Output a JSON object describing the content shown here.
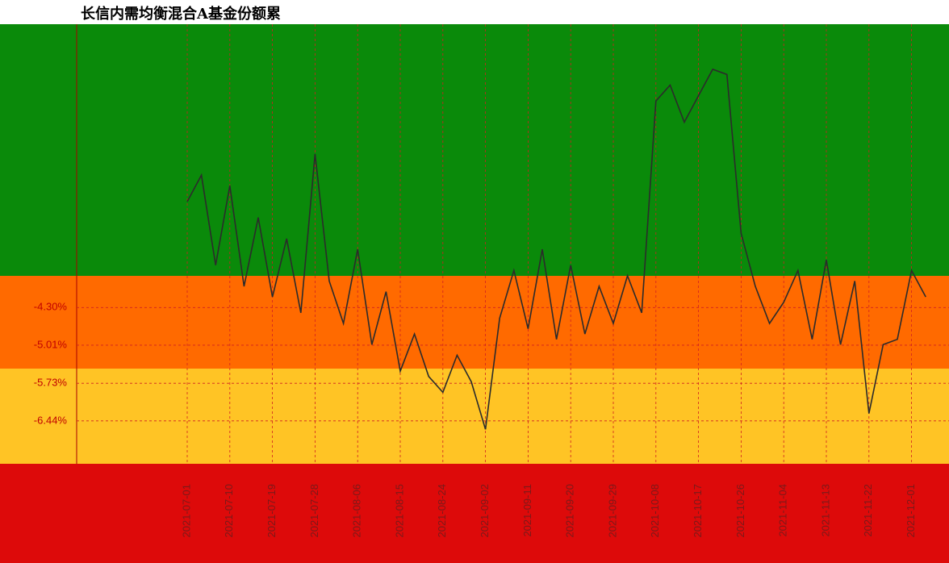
{
  "chart_data": {
    "type": "line",
    "title": "长信内需均衡混合A基金份额累",
    "categories": [
      "2021-07-01",
      null,
      null,
      "2021-07-10",
      null,
      null,
      "2021-07-19",
      null,
      null,
      "2021-07-28",
      null,
      null,
      "2021-08-06",
      null,
      null,
      "2021-08-15",
      null,
      null,
      "2021-08-24",
      null,
      null,
      "2021-09-02",
      null,
      null,
      "2021-09-11",
      null,
      null,
      "2021-09-20",
      null,
      null,
      "2021-09-29",
      null,
      null,
      "2021-10-08",
      null,
      null,
      "2021-10-17",
      null,
      null,
      "2021-10-26",
      null,
      null,
      "2021-11-04",
      null,
      null,
      "2021-11-13",
      null,
      null,
      "2021-11-22",
      null,
      null,
      "2021-12-01",
      null
    ],
    "values": [
      -2.3,
      -1.8,
      -3.5,
      -2.0,
      -3.9,
      -2.6,
      -4.1,
      -3.0,
      -4.4,
      -1.4,
      -3.8,
      -4.6,
      -3.2,
      -5.0,
      -4.0,
      -5.5,
      -4.8,
      -5.6,
      -5.9,
      -5.2,
      -5.7,
      -6.6,
      -4.5,
      -3.6,
      -4.7,
      -3.2,
      -4.9,
      -3.5,
      -4.8,
      -3.9,
      -4.6,
      -3.7,
      -4.4,
      -0.4,
      -0.1,
      -0.8,
      -0.3,
      0.2,
      0.1,
      -2.9,
      -3.9,
      -4.6,
      -4.2,
      -3.6,
      -4.9,
      -3.4,
      -5.0,
      -3.8,
      -6.3,
      -5.0,
      -4.9,
      -3.6,
      -4.1
    ],
    "color": "#2b2b2b",
    "ylim": [
      -7.25,
      1.05
    ],
    "yticks": [
      {
        "value": -4.3,
        "label": "-4.30%"
      },
      {
        "value": -5.01,
        "label": "-5.01%"
      },
      {
        "value": -5.73,
        "label": "-5.73%"
      },
      {
        "value": -6.44,
        "label": "-6.44%"
      }
    ],
    "grid": true
  }
}
